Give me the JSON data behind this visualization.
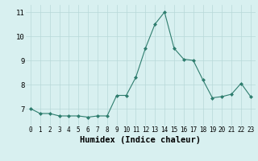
{
  "x": [
    0,
    1,
    2,
    3,
    4,
    5,
    6,
    7,
    8,
    9,
    10,
    11,
    12,
    13,
    14,
    15,
    16,
    17,
    18,
    19,
    20,
    21,
    22,
    23
  ],
  "y": [
    7.0,
    6.8,
    6.8,
    6.7,
    6.7,
    6.7,
    6.65,
    6.7,
    6.7,
    7.55,
    7.55,
    8.3,
    9.5,
    10.5,
    11.0,
    9.5,
    9.05,
    9.0,
    8.2,
    7.45,
    7.5,
    7.6,
    8.05,
    7.5
  ],
  "line_color": "#2e7d6e",
  "marker": "D",
  "marker_size": 2,
  "bg_color": "#d8f0f0",
  "grid_color": "#b8d8d8",
  "xlabel": "Humidex (Indice chaleur)",
  "xlabel_fontsize": 7.5,
  "xlim": [
    -0.5,
    23.5
  ],
  "ylim": [
    6.3,
    11.3
  ],
  "yticks": [
    7,
    8,
    9,
    10,
    11
  ],
  "xtick_fontsize": 5.5,
  "ytick_fontsize": 6.5
}
